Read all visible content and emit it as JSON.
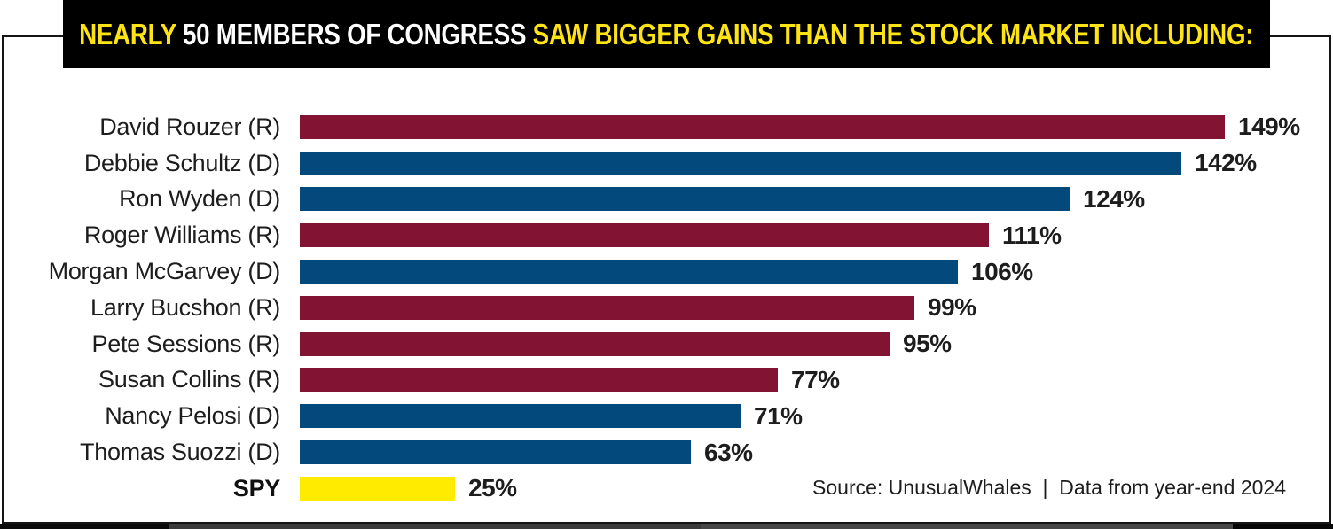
{
  "banner": {
    "title_parts": [
      {
        "text": "NEARLY ",
        "color": "#FFE415"
      },
      {
        "text": "50 MEMBERS OF CONGRESS ",
        "color": "#FFFFFF"
      },
      {
        "text": "SAW BIGGER GAINS THAN THE STOCK MARKET INCLUDING:",
        "color": "#FFE415"
      }
    ],
    "background": "#000000"
  },
  "source_note": "Source: UnusualWhales  |  Data from year-end 2024",
  "colors": {
    "republican_bar": "#821333",
    "democrat_bar": "#04497B",
    "benchmark_bar": "#FFEB00",
    "banner_yellow": "#FFE415",
    "banner_white": "#FFFFFF",
    "text": "#1D1D1D",
    "border": "#151515"
  },
  "chart_data": {
    "type": "bar",
    "orientation": "horizontal",
    "title": "NEARLY 50 MEMBERS OF CONGRESS SAW BIGGER GAINS THAN THE STOCK MARKET INCLUDING:",
    "categories": [
      "David Rouzer (R)",
      "Debbie Schultz (D)",
      "Ron Wyden (D)",
      "Roger Williams (R)",
      "Morgan McGarvey (D)",
      "Larry Bucshon (R)",
      "Pete Sessions (R)",
      "Susan Collins (R)",
      "Nancy Pelosi (D)",
      "Thomas Suozzi (D)",
      "SPY"
    ],
    "values": [
      149,
      142,
      124,
      111,
      106,
      99,
      95,
      77,
      71,
      63,
      25
    ],
    "unit": "%",
    "xlim": [
      0,
      160
    ],
    "grid": false,
    "value_labels": "outside-end",
    "bars": [
      {
        "label": "David Rouzer (R)",
        "value": 149,
        "display": "149%",
        "group": "republican",
        "bold_label": false
      },
      {
        "label": "Debbie Schultz (D)",
        "value": 142,
        "display": "142%",
        "group": "democrat",
        "bold_label": false
      },
      {
        "label": "Ron Wyden (D)",
        "value": 124,
        "display": "124%",
        "group": "democrat",
        "bold_label": false
      },
      {
        "label": "Roger Williams (R)",
        "value": 111,
        "display": "111%",
        "group": "republican",
        "bold_label": false
      },
      {
        "label": "Morgan McGarvey (D)",
        "value": 106,
        "display": "106%",
        "group": "democrat",
        "bold_label": false
      },
      {
        "label": "Larry Bucshon (R)",
        "value": 99,
        "display": "99%",
        "group": "republican",
        "bold_label": false
      },
      {
        "label": "Pete Sessions (R)",
        "value": 95,
        "display": "95%",
        "group": "republican",
        "bold_label": false
      },
      {
        "label": "Susan Collins (R)",
        "value": 77,
        "display": "77%",
        "group": "republican",
        "bold_label": false
      },
      {
        "label": "Nancy Pelosi (D)",
        "value": 71,
        "display": "71%",
        "group": "democrat",
        "bold_label": false
      },
      {
        "label": "Thomas Suozzi (D)",
        "value": 63,
        "display": "63%",
        "group": "democrat",
        "bold_label": false
      },
      {
        "label": "SPY",
        "value": 25,
        "display": "25%",
        "group": "benchmark",
        "bold_label": true
      }
    ],
    "group_colors": {
      "republican": "#821333",
      "democrat": "#04497B",
      "benchmark": "#FFEB00"
    }
  }
}
